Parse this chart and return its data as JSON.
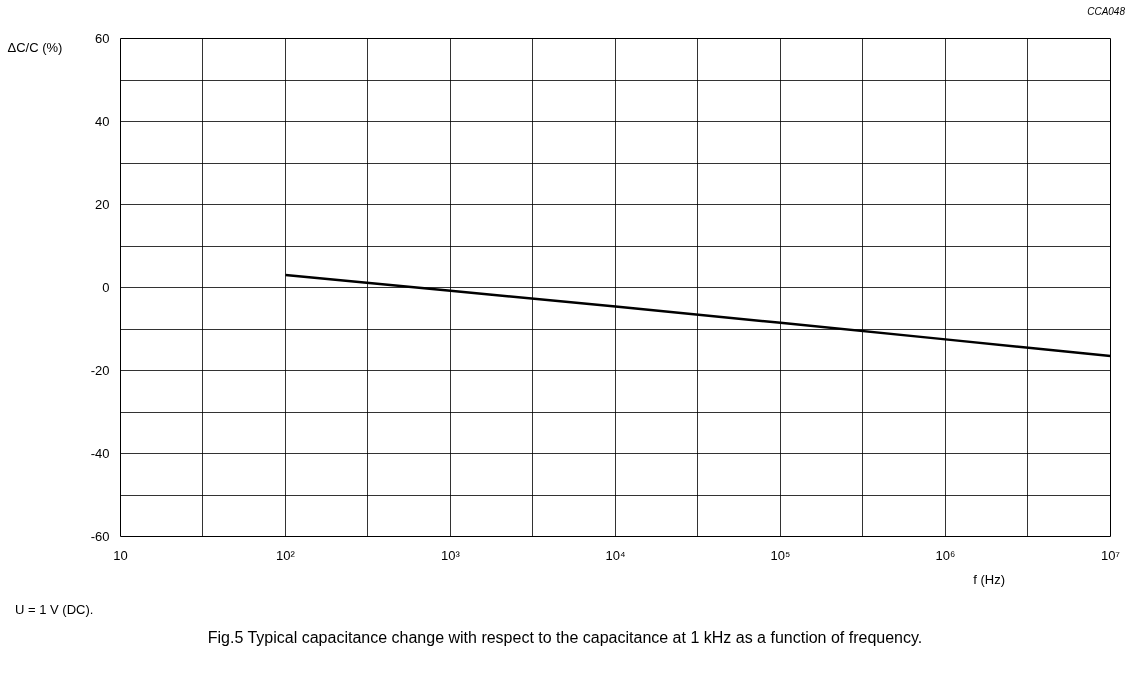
{
  "chart_data": {
    "type": "line",
    "title": "Fig.5  Typical capacitance change with respect to the capacitance at 1 kHz as a function of frequency.",
    "xlabel": "f  (Hz)",
    "ylabel": "ΔC/C (%)",
    "annotations": [
      "CCA048",
      "U = 1 V (DC)."
    ],
    "log": "x",
    "grid": true,
    "marker": "none",
    "line_style": "solid",
    "xlim": [
      10,
      10000000
    ],
    "ylim": [
      -60,
      60
    ],
    "xticks": [
      10,
      {
        "value": 31.62,
        "label": null
      },
      {
        "value": 100,
        "label": "10²"
      },
      {
        "value": 316.2,
        "label": null
      },
      {
        "value": 1000,
        "label": "10³"
      },
      {
        "value": 3162,
        "label": null
      },
      {
        "value": 10000,
        "label": "10⁴"
      },
      {
        "value": 31620,
        "label": null
      },
      {
        "value": 100000,
        "label": "10⁵"
      },
      {
        "value": 316200,
        "label": null
      },
      {
        "value": 1000000,
        "label": "10⁶"
      },
      {
        "value": 3162000,
        "label": null
      },
      {
        "value": 10000000,
        "label": "10⁷"
      }
    ],
    "yticks": [
      -60,
      {
        "value": -50,
        "label": null
      },
      -40,
      {
        "value": -30,
        "label": null
      },
      -20,
      {
        "value": -10,
        "label": null
      },
      0,
      {
        "value": 10,
        "label": null
      },
      20,
      {
        "value": 30,
        "label": null
      },
      40,
      {
        "value": 50,
        "label": null
      },
      60
    ],
    "series": [
      {
        "color": "#000000",
        "x": [
          100,
          1000,
          10000,
          100000,
          1000000,
          10000000
        ],
        "values": [
          3,
          -0.8,
          -4.6,
          -8.5,
          -12.5,
          -16.5
        ]
      }
    ]
  }
}
